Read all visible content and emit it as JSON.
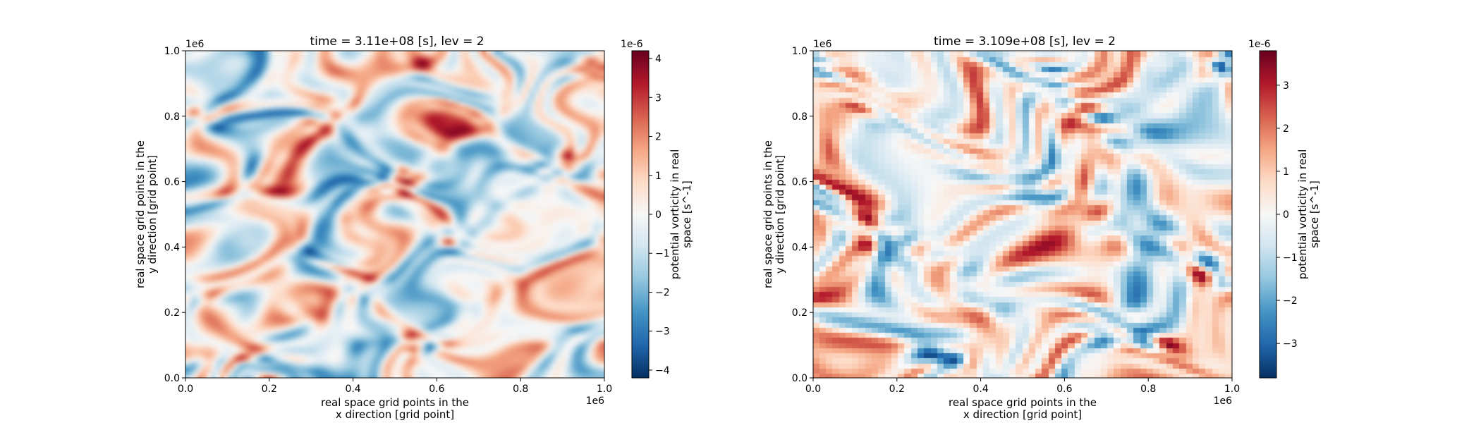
{
  "chart_data": [
    {
      "type": "heatmap",
      "title": "time = 3.11e+08 [s], lev = 2",
      "xlabel_line1": "real space grid points in the",
      "xlabel_line2": "x direction [grid point]",
      "ylabel_line1": "real space grid points in the",
      "ylabel_line2": "y direction [grid point]",
      "x_offset_text": "1e6",
      "y_offset_text": "1e6",
      "xlim": [
        0,
        1.0
      ],
      "ylim": [
        0,
        1.0
      ],
      "xticks": [
        "0.0",
        "0.2",
        "0.4",
        "0.6",
        "0.8",
        "1.0"
      ],
      "yticks": [
        "0.0",
        "0.2",
        "0.4",
        "0.6",
        "0.8",
        "1.0"
      ],
      "colorbar": {
        "label_line1": "potential vorticity in real",
        "label_line2": "space [s^-1]",
        "offset_text": "1e-6",
        "vmin": -4.2,
        "vmax": 4.2,
        "ticks": [
          "4",
          "3",
          "2",
          "1",
          "0",
          "−1",
          "−2",
          "−3",
          "−4"
        ],
        "tick_values": [
          4,
          3,
          2,
          1,
          0,
          -1,
          -2,
          -3,
          -4
        ]
      },
      "colormap": "RdBu_r",
      "field": {
        "resolution": "high",
        "smooth": true,
        "grid": 96,
        "seed": 7,
        "amplitude": 4.0
      }
    },
    {
      "type": "heatmap",
      "title": "time = 3.109e+08 [s], lev = 2",
      "xlabel_line1": "real space grid points in the",
      "xlabel_line2": "x direction [grid point]",
      "ylabel_line1": "real space grid points in the",
      "ylabel_line2": "y direction [grid point]",
      "x_offset_text": "1e6",
      "y_offset_text": "1e6",
      "xlim": [
        0,
        1.0
      ],
      "ylim": [
        0,
        1.0
      ],
      "xticks": [
        "0.0",
        "0.2",
        "0.4",
        "0.6",
        "0.8",
        "1.0"
      ],
      "yticks": [
        "0.0",
        "0.2",
        "0.4",
        "0.6",
        "0.8",
        "1.0"
      ],
      "colorbar": {
        "label_line1": "potential vorticity in real",
        "label_line2": "space [s^-1]",
        "offset_text": "1e-6",
        "vmin": -3.8,
        "vmax": 3.8,
        "ticks": [
          "3",
          "2",
          "1",
          "0",
          "−1",
          "−2",
          "−3"
        ],
        "tick_values": [
          3,
          2,
          1,
          0,
          -1,
          -2,
          -3
        ]
      },
      "colormap": "RdBu_r",
      "field": {
        "resolution": "coarse",
        "smooth": false,
        "grid": 64,
        "seed": 19,
        "amplitude": 3.5
      }
    }
  ]
}
